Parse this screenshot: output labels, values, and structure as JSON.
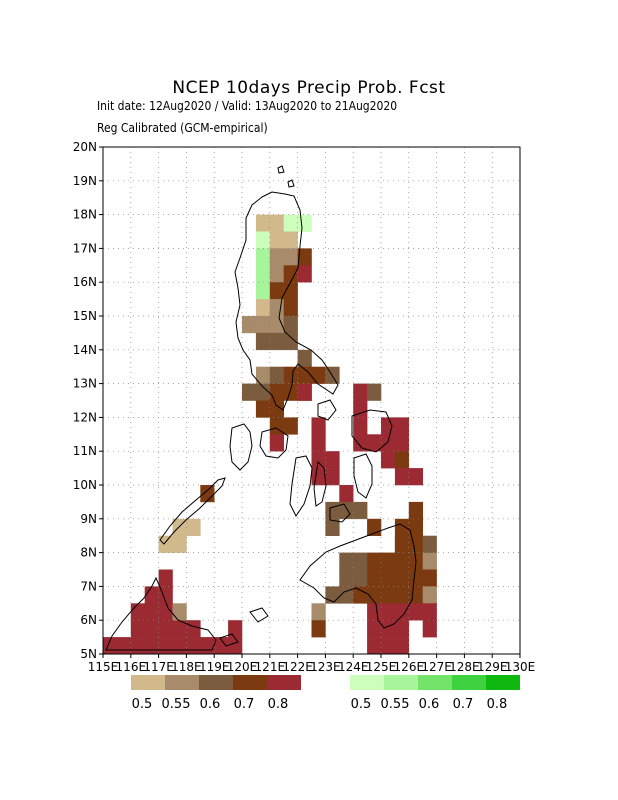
{
  "header": {
    "title": "NCEP 10days Precip Prob. Fcst",
    "subtitle_line1": "Init date: 12Aug2020 / Valid: 13Aug2020 to 21Aug2020",
    "subtitle_line2": "Reg Calibrated (GCM-empirical)"
  },
  "map": {
    "lat_ticks": [
      "5N",
      "6N",
      "7N",
      "8N",
      "9N",
      "10N",
      "11N",
      "12N",
      "13N",
      "14N",
      "15N",
      "16N",
      "17N",
      "18N",
      "19N",
      "20N"
    ],
    "lon_ticks": [
      "115E",
      "116E",
      "117E",
      "118E",
      "119E",
      "120E",
      "121E",
      "122E",
      "123E",
      "124E",
      "125E",
      "126E",
      "127E",
      "128E",
      "129E",
      "130E"
    ],
    "lat_range": [
      5,
      20
    ],
    "lon_range": [
      115,
      130
    ],
    "grid": true,
    "cell_size_deg": 0.5,
    "colors": {
      "d1": "#d2b98c",
      "d2": "#a78b6a",
      "d3": "#7c5c3e",
      "d4": "#7b3a10",
      "d5": "#9b2a32",
      "w1": "#ccffbb",
      "w2": "#a7f59a",
      "w3": "#74e36a",
      "w4": "#3fd240",
      "w5": "#0fb80f"
    }
  },
  "legend": {
    "dry_labels": [
      "0.5",
      "0.55",
      "0.6",
      "0.7",
      "0.8"
    ],
    "wet_labels": [
      "0.5",
      "0.55",
      "0.6",
      "0.7",
      "0.8"
    ]
  }
}
